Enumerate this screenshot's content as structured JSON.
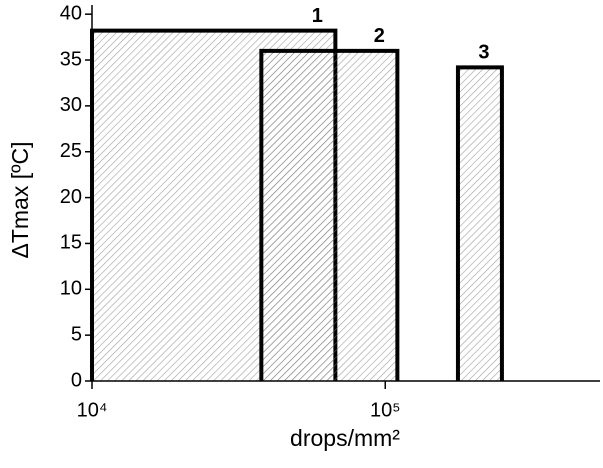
{
  "chart_data": {
    "type": "range_bar",
    "xlabel": "drops/mm²",
    "ylabel": "ΔTmax [ºC]",
    "xscale": "log",
    "xlim": [
      10000,
      540000
    ],
    "xticks": [
      {
        "value": 10000,
        "label": "10⁴"
      },
      {
        "value": 100000,
        "label": "10⁵"
      }
    ],
    "ylim": [
      0,
      41
    ],
    "yticks": [
      0,
      5,
      10,
      15,
      20,
      25,
      30,
      35,
      40
    ],
    "color": "#000000",
    "bars": [
      {
        "label": "1",
        "xmin": 10000,
        "xmax": 67600,
        "value": 38.2
      },
      {
        "label": "2",
        "xmin": 37800,
        "xmax": 110000,
        "value": 36.0
      },
      {
        "label": "3",
        "xmin": 177000,
        "xmax": 250000,
        "value": 34.2
      }
    ]
  }
}
